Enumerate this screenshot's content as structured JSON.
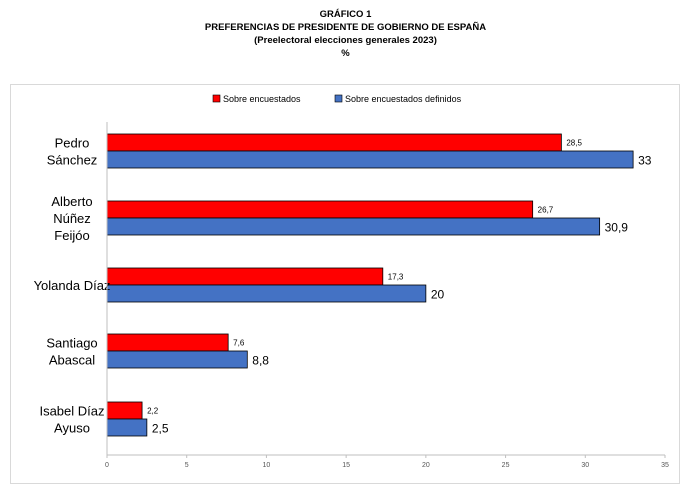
{
  "chart_data": {
    "type": "bar",
    "orientation": "horizontal",
    "title": "GRÁFICO 1",
    "subtitle_lines": [
      "PREFERENCIAS DE PRESIDENTE DE GOBIERNO DE ESPAÑA",
      "(Preelectoral elecciones generales 2023)",
      "%"
    ],
    "categories": [
      [
        "Pedro",
        "Sánchez"
      ],
      [
        "Alberto",
        "Núñez",
        "Feijóo"
      ],
      [
        "Yolanda Díaz"
      ],
      [
        "Santiago",
        "Abascal"
      ],
      [
        "Isabel Díaz",
        "Ayuso"
      ]
    ],
    "series": [
      {
        "name": "Sobre encuestados",
        "color": "#ff0000",
        "values": [
          28.5,
          26.7,
          17.3,
          7.6,
          2.2
        ],
        "labels": [
          "28,5",
          "26,7",
          "17,3",
          "7,6",
          "2,2"
        ]
      },
      {
        "name": "Sobre encuestados definidos",
        "color": "#4472c4",
        "values": [
          33,
          30.9,
          20,
          8.8,
          2.5
        ],
        "labels": [
          "33",
          "30,9",
          "20",
          "8,8",
          "2,5"
        ]
      }
    ],
    "xlim": [
      0,
      35
    ],
    "xticks": [
      0,
      5,
      10,
      15,
      20,
      25,
      30,
      35
    ],
    "legend_position": "top",
    "grid": false
  }
}
